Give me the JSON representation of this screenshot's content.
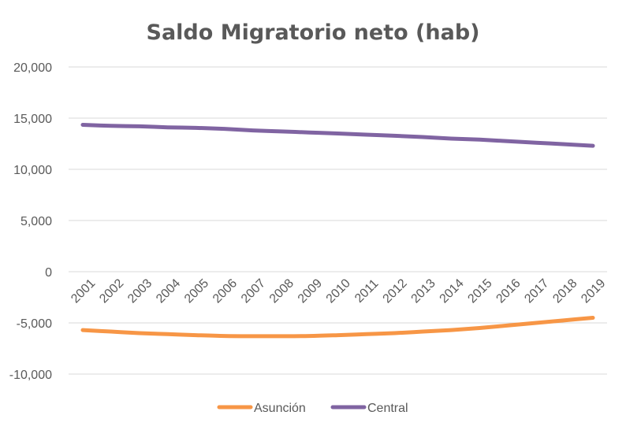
{
  "chart_data": {
    "type": "line",
    "title": "Saldo Migratorio neto (hab)",
    "xlabel": "",
    "ylabel": "",
    "categories": [
      "2001",
      "2002",
      "2003",
      "2004",
      "2005",
      "2006",
      "2007",
      "2008",
      "2009",
      "2010",
      "2011",
      "2012",
      "2013",
      "2014",
      "2015",
      "2016",
      "2017",
      "2018",
      "2019"
    ],
    "y_ticks": [
      20000,
      15000,
      10000,
      5000,
      0,
      -5000,
      -10000
    ],
    "y_tick_labels": [
      "20,000",
      "15,000",
      "10,000",
      "5,000",
      "0",
      "-5,000",
      "-10,000"
    ],
    "ylim": [
      -10000,
      20000
    ],
    "grid": true,
    "legend_position": "bottom",
    "series": [
      {
        "name": "Asunción",
        "color": "#f79646",
        "values": [
          -5700,
          -5850,
          -6000,
          -6100,
          -6200,
          -6280,
          -6300,
          -6300,
          -6280,
          -6200,
          -6100,
          -6000,
          -5850,
          -5700,
          -5500,
          -5250,
          -5000,
          -4750,
          -4500
        ]
      },
      {
        "name": "Central",
        "color": "#8064a2",
        "values": [
          14350,
          14250,
          14200,
          14100,
          14050,
          13950,
          13800,
          13700,
          13600,
          13500,
          13380,
          13280,
          13150,
          13000,
          12900,
          12750,
          12600,
          12450,
          12300
        ]
      }
    ]
  }
}
